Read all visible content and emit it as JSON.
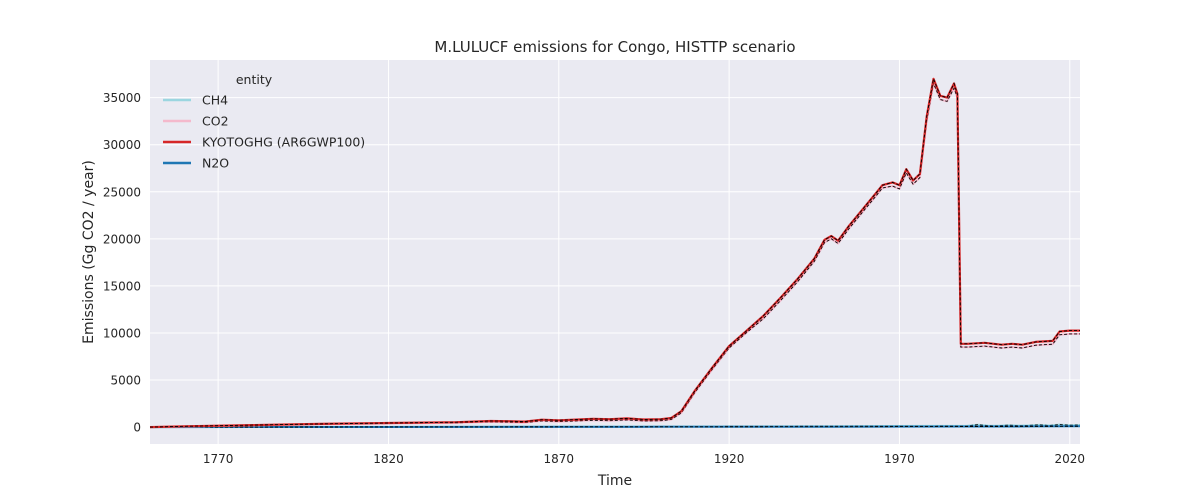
{
  "chart_data": {
    "type": "line",
    "title": "M.LULUCF emissions for Congo, HISTTP scenario",
    "xlabel": "Time",
    "ylabel": "Emissions (Gg CO2 / year)",
    "xlim": [
      1750,
      2023
    ],
    "ylim": [
      -1800,
      39000
    ],
    "xticks": [
      1770,
      1820,
      1870,
      1920,
      1970,
      2020
    ],
    "yticks": [
      0,
      5000,
      10000,
      15000,
      20000,
      25000,
      30000,
      35000
    ],
    "grid": true,
    "legend": {
      "title": "entity",
      "placement": "top-left"
    },
    "colors": {
      "background": "#eaeaf2",
      "grid": "#ffffff",
      "CH4": "#9bd6e0",
      "CO2": "#f4b9cc",
      "KYOTOGHG (AR6GWP100)": "#d62728",
      "N2O": "#1f77b4",
      "reference": "#000000"
    },
    "series": [
      {
        "name": "CH4",
        "x": [
          1750,
          1800,
          1850,
          1900,
          1950,
          1990,
          1993,
          1996,
          1999,
          2002,
          2005,
          2008,
          2011,
          2014,
          2017,
          2020,
          2023
        ],
        "values": [
          0,
          20,
          40,
          60,
          90,
          130,
          250,
          160,
          140,
          200,
          150,
          180,
          230,
          170,
          260,
          200,
          220
        ]
      },
      {
        "name": "CO2",
        "x": [
          1750,
          1760,
          1780,
          1800,
          1820,
          1840,
          1850,
          1855,
          1860,
          1865,
          1870,
          1875,
          1880,
          1885,
          1890,
          1895,
          1900,
          1903,
          1906,
          1910,
          1915,
          1920,
          1925,
          1930,
          1935,
          1940,
          1945,
          1948,
          1950,
          1952,
          1955,
          1960,
          1963,
          1965,
          1968,
          1970,
          1972,
          1974,
          1976,
          1978,
          1980,
          1982,
          1984,
          1986,
          1987,
          1988,
          1990,
          1995,
          2000,
          2003,
          2006,
          2010,
          2015,
          2017,
          2020,
          2023
        ],
        "values": [
          0,
          60,
          180,
          300,
          380,
          450,
          550,
          520,
          470,
          650,
          580,
          650,
          720,
          680,
          760,
          640,
          680,
          800,
          1500,
          3700,
          6100,
          8400,
          10000,
          11500,
          13400,
          15400,
          17600,
          19600,
          20000,
          19500,
          21000,
          23200,
          24500,
          25400,
          25600,
          25300,
          27000,
          25800,
          26500,
          32500,
          36500,
          34800,
          34600,
          36000,
          35000,
          8500,
          8500,
          8600,
          8400,
          8500,
          8400,
          8700,
          8800,
          9800,
          9900,
          9900
        ]
      },
      {
        "name": "KYOTOGHG (AR6GWP100)",
        "x": [
          1750,
          1760,
          1780,
          1800,
          1820,
          1840,
          1850,
          1855,
          1860,
          1865,
          1870,
          1875,
          1880,
          1885,
          1890,
          1895,
          1900,
          1903,
          1906,
          1910,
          1915,
          1920,
          1925,
          1930,
          1935,
          1940,
          1945,
          1948,
          1950,
          1952,
          1955,
          1960,
          1963,
          1965,
          1968,
          1970,
          1972,
          1974,
          1976,
          1978,
          1980,
          1982,
          1984,
          1986,
          1987,
          1988,
          1990,
          1995,
          2000,
          2003,
          2006,
          2010,
          2015,
          2017,
          2020,
          2023
        ],
        "values": [
          0,
          80,
          210,
          340,
          430,
          520,
          640,
          620,
          580,
          780,
          720,
          790,
          880,
          840,
          920,
          800,
          840,
          960,
          1700,
          3900,
          6300,
          8600,
          10200,
          11800,
          13700,
          15700,
          17900,
          19900,
          20300,
          19800,
          21300,
          23500,
          24800,
          25700,
          26000,
          25700,
          27400,
          26200,
          26900,
          33000,
          37000,
          35200,
          35000,
          36500,
          35400,
          8850,
          8850,
          8950,
          8750,
          8850,
          8750,
          9050,
          9150,
          10150,
          10250,
          10250
        ]
      },
      {
        "name": "N2O",
        "x": [
          1750,
          1800,
          1850,
          1900,
          1950,
          1990,
          2000,
          2010,
          2023
        ],
        "values": [
          0,
          10,
          20,
          30,
          40,
          60,
          60,
          70,
          80
        ]
      }
    ]
  }
}
